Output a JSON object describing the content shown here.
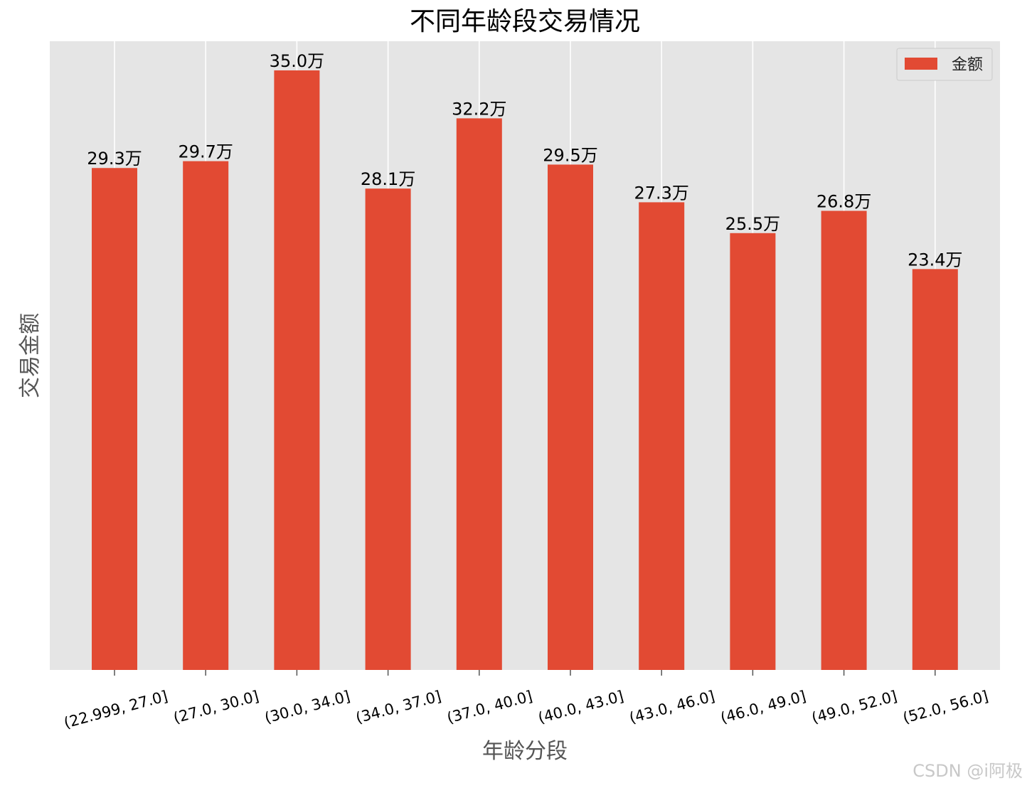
{
  "chart_data": {
    "type": "bar",
    "title": "不同年龄段交易情况",
    "xlabel": "年龄分段",
    "ylabel": "交易金额",
    "categories": [
      "(22.999, 27.0]",
      "(27.0, 30.0]",
      "(30.0, 34.0]",
      "(34.0, 37.0]",
      "(37.0, 40.0]",
      "(40.0, 43.0]",
      "(43.0, 46.0]",
      "(46.0, 49.0]",
      "(49.0, 52.0]",
      "(52.0, 56.0]"
    ],
    "series": [
      {
        "name": "金额",
        "values": [
          29.3,
          29.7,
          35.0,
          28.1,
          32.2,
          29.5,
          27.3,
          25.5,
          26.8,
          23.4
        ],
        "labels": [
          "29.3万",
          "29.7万",
          "35.0万",
          "28.1万",
          "32.2万",
          "29.5万",
          "27.3万",
          "25.5万",
          "26.8万",
          "23.4万"
        ],
        "color": "#E24A33"
      }
    ],
    "ylim": [
      0,
      36.7
    ],
    "grid": true,
    "legend_position": "top-right",
    "x_tick_rotation": 15,
    "background": "#E5E5E5"
  },
  "watermark": "CSDN @i阿极"
}
